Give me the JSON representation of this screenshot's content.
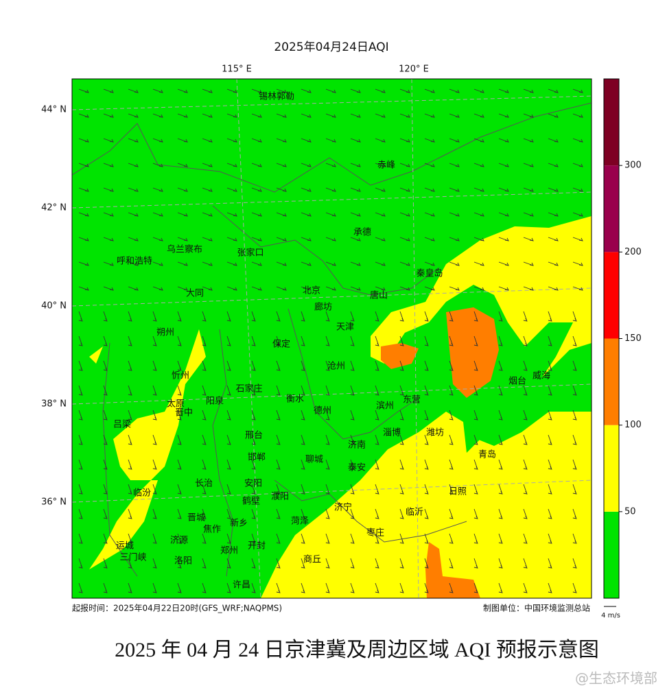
{
  "title": "2025年04月24日AQI",
  "lon_labels": [
    "115° E",
    "120° E"
  ],
  "lat_labels": [
    "44° N",
    "42° N",
    "40° N",
    "38° N",
    "36° N"
  ],
  "cities": [
    "锡林郭勒",
    "赤峰",
    "承德",
    "乌兰察布",
    "张家口",
    "呼和浩特",
    "秦皇岛",
    "大同",
    "北京",
    "唐山",
    "廊坊",
    "天津",
    "朔州",
    "保定",
    "沧州",
    "忻州",
    "烟台",
    "威海",
    "石家庄",
    "衡水",
    "东营",
    "太原",
    "阳泉",
    "晋中",
    "滨州",
    "德州",
    "吕梁",
    "邢台",
    "淄博",
    "潍坊",
    "济南",
    "邯郸",
    "聊城",
    "青岛",
    "泰安",
    "长治",
    "安阳",
    "临汾",
    "濮阳",
    "鹤壁",
    "日照",
    "济宁",
    "临沂",
    "晋城",
    "菏泽",
    "焦作",
    "新乡",
    "枣庄",
    "济源",
    "运城",
    "郑州",
    "开封",
    "三门峡",
    "洛阳",
    "商丘",
    "许昌"
  ],
  "colorbar": {
    "ticks": [
      50,
      100,
      150,
      200,
      300
    ],
    "colors": [
      "#00e400",
      "#ffff00",
      "#ff7e00",
      "#ff0000",
      "#99004c",
      "#7e0023"
    ]
  },
  "footer_left": "起报时间：2025年04月22日20时(GFS_WRF;NAQPMS)",
  "footer_right": "制图单位：中国环境监测总站",
  "wind_scale": "4 m/s",
  "caption": "2025 年 04 月 24 日京津冀及周边区域 AQI 预报示意图",
  "watermark": "@生态环境部"
}
